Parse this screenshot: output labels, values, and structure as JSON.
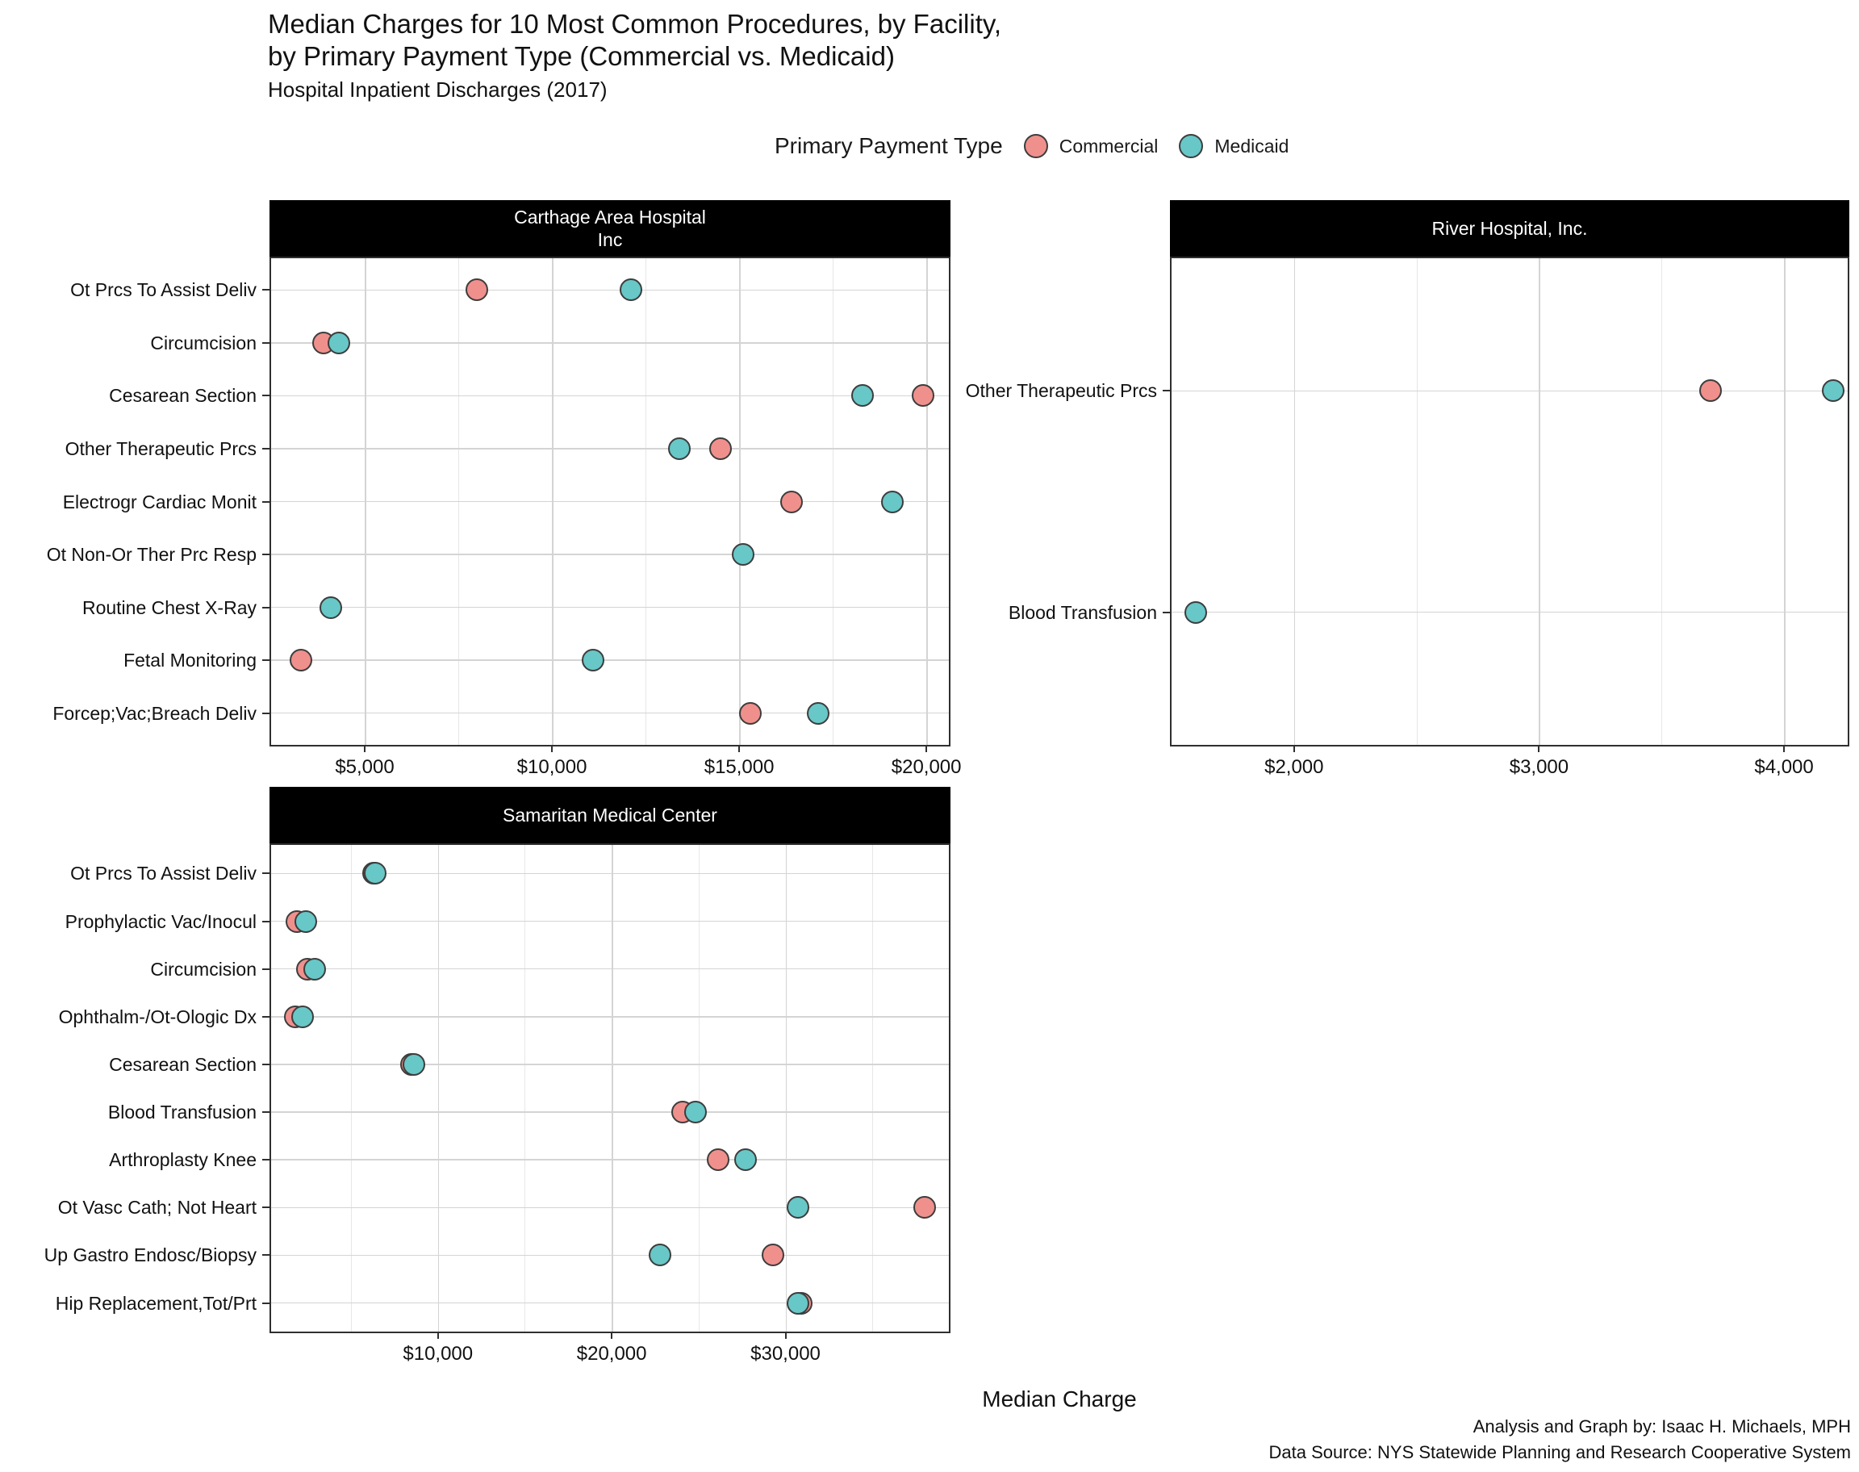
{
  "title": {
    "line1": "Median Charges for 10 Most Common Procedures, by Facility,",
    "line2": "by Primary Payment Type (Commercial vs. Medicaid)",
    "subtitle": "Hospital Inpatient Discharges (2017)"
  },
  "legend": {
    "title": "Primary Payment Type",
    "items": [
      {
        "label": "Commercial",
        "color": "#F0908C"
      },
      {
        "label": "Medicaid",
        "color": "#68C7C7"
      }
    ]
  },
  "xlabel": "Median Charge",
  "caption": {
    "line1": "Analysis and Graph by: Isaac H. Michaels, MPH",
    "line2": "Data Source: NYS Statewide Planning and Research Cooperative System"
  },
  "style": {
    "commercial": "#F0908C",
    "medicaid": "#68C7C7",
    "dot_stroke": "#3d3d3d",
    "grid_major": "#d4d4d4",
    "grid_minor": "#e7e7e7",
    "facet_bg": "#000000",
    "facet_fg": "#ffffff"
  },
  "chart_data": [
    {
      "type": "scatter",
      "facet": "Carthage Area Hospital\nInc",
      "legend_series": [
        "Commercial",
        "Medicaid"
      ],
      "x_range": [
        2500,
        20600
      ],
      "x_minor": [
        7500,
        12500,
        17500
      ],
      "x_ticks": [
        {
          "value": 5000,
          "label": "$5,000"
        },
        {
          "value": 10000,
          "label": "$10,000"
        },
        {
          "value": 15000,
          "label": "$15,000"
        },
        {
          "value": 20000,
          "label": "$20,000"
        }
      ],
      "categories": [
        {
          "label": "Ot Prcs To Assist Deliv",
          "commercial": 8000,
          "medicaid": 12100
        },
        {
          "label": "Circumcision",
          "commercial": 3900,
          "medicaid": 4300
        },
        {
          "label": "Cesarean Section",
          "commercial": 19900,
          "medicaid": 18300
        },
        {
          "label": "Other Therapeutic Prcs",
          "commercial": 14500,
          "medicaid": 13400
        },
        {
          "label": "Electrogr Cardiac Monit",
          "commercial": 16400,
          "medicaid": 19100
        },
        {
          "label": "Ot Non-Or Ther Prc Resp",
          "commercial": null,
          "medicaid": 15100
        },
        {
          "label": "Routine Chest X-Ray",
          "commercial": null,
          "medicaid": 4100
        },
        {
          "label": "Fetal Monitoring",
          "commercial": 3300,
          "medicaid": 11100
        },
        {
          "label": "Forcep;Vac;Breach Deliv",
          "commercial": 15300,
          "medicaid": 17100
        }
      ]
    },
    {
      "type": "scatter",
      "facet": "River Hospital, Inc.",
      "legend_series": [
        "Commercial",
        "Medicaid"
      ],
      "x_range": [
        1500,
        4260
      ],
      "x_minor": [
        2500,
        3500
      ],
      "x_ticks": [
        {
          "value": 2000,
          "label": "$2,000"
        },
        {
          "value": 3000,
          "label": "$3,000"
        },
        {
          "value": 4000,
          "label": "$4,000"
        }
      ],
      "categories": [
        {
          "label": "Other Therapeutic Prcs",
          "commercial": 3700,
          "medicaid": 4200
        },
        {
          "label": "Blood Transfusion",
          "commercial": null,
          "medicaid": 1600
        }
      ]
    },
    {
      "type": "scatter",
      "facet": "Samaritan Medical Center",
      "legend_series": [
        "Commercial",
        "Medicaid"
      ],
      "x_range": [
        400,
        39400
      ],
      "x_minor": [
        5000,
        15000,
        25000,
        35000
      ],
      "x_ticks": [
        {
          "value": 10000,
          "label": "$10,000"
        },
        {
          "value": 20000,
          "label": "$20,000"
        },
        {
          "value": 30000,
          "label": "$30,000"
        }
      ],
      "categories": [
        {
          "label": "Ot Prcs To Assist Deliv",
          "commercial": 6300,
          "medicaid": 6400
        },
        {
          "label": "Prophylactic Vac/Inocul",
          "commercial": 1900,
          "medicaid": 2400
        },
        {
          "label": "Circumcision",
          "commercial": 2500,
          "medicaid": 2900
        },
        {
          "label": "Ophthalm-/Ot-Ologic Dx",
          "commercial": 1800,
          "medicaid": 2200
        },
        {
          "label": "Cesarean Section",
          "commercial": 8500,
          "medicaid": 8600
        },
        {
          "label": "Blood Transfusion",
          "commercial": 24100,
          "medicaid": 24800
        },
        {
          "label": "Arthroplasty Knee",
          "commercial": 26100,
          "medicaid": 27700
        },
        {
          "label": "Ot Vasc Cath; Not Heart",
          "commercial": 38000,
          "medicaid": 30700
        },
        {
          "label": "Up Gastro Endosc/Biopsy",
          "commercial": 29300,
          "medicaid": 22800
        },
        {
          "label": "Hip Replacement,Tot/Prt",
          "commercial": 30900,
          "medicaid": 30700
        }
      ]
    }
  ]
}
